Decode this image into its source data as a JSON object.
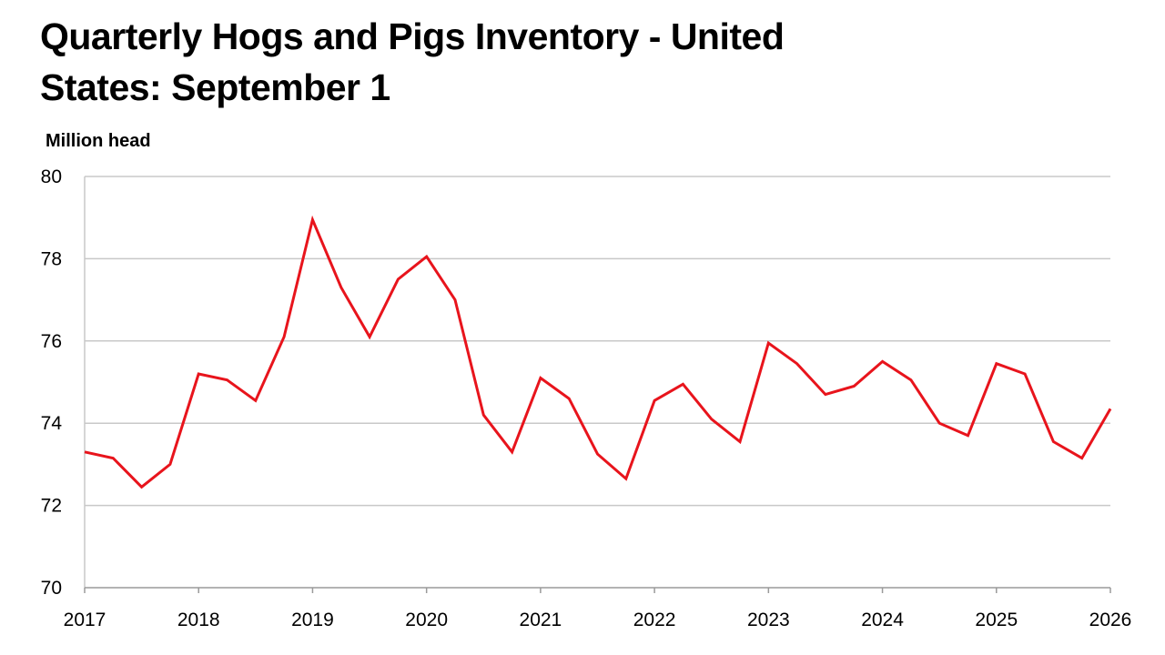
{
  "chart_data": {
    "type": "line",
    "title": "Quarterly Hogs and Pigs Inventory - United States: September 1",
    "ylabel": "Million head",
    "xlabel": "",
    "ylim": [
      70,
      80
    ],
    "xlim": [
      2017,
      2026
    ],
    "grid": true,
    "y_ticks": [
      "70",
      "72",
      "74",
      "76",
      "78",
      "80"
    ],
    "x_ticks": [
      "2017",
      "2018",
      "2019",
      "2020",
      "2021",
      "2022",
      "2023",
      "2024",
      "2025",
      "2026"
    ],
    "color": "#e8141c",
    "x": [
      2017.0,
      2017.25,
      2017.5,
      2017.75,
      2018.0,
      2018.25,
      2018.5,
      2018.75,
      2019.0,
      2019.25,
      2019.5,
      2019.75,
      2020.0,
      2020.25,
      2020.5,
      2020.75,
      2021.0,
      2021.25,
      2021.5,
      2021.75,
      2022.0,
      2022.25,
      2022.5,
      2022.75,
      2023.0,
      2023.25,
      2023.5,
      2023.75,
      2024.0,
      2024.25,
      2024.5,
      2024.75,
      2025.0,
      2025.25,
      2025.5,
      2025.75,
      2026.0
    ],
    "values": [
      73.3,
      73.15,
      72.45,
      73.0,
      75.2,
      75.05,
      74.55,
      76.1,
      78.95,
      77.3,
      76.1,
      77.5,
      78.05,
      77.0,
      74.2,
      73.3,
      75.1,
      74.6,
      73.25,
      72.65,
      74.55,
      74.95,
      74.1,
      73.55,
      75.95,
      75.45,
      74.7,
      74.9,
      75.5,
      75.05,
      74.0,
      73.7,
      75.45,
      75.2,
      73.55,
      73.15,
      74.35
    ]
  }
}
